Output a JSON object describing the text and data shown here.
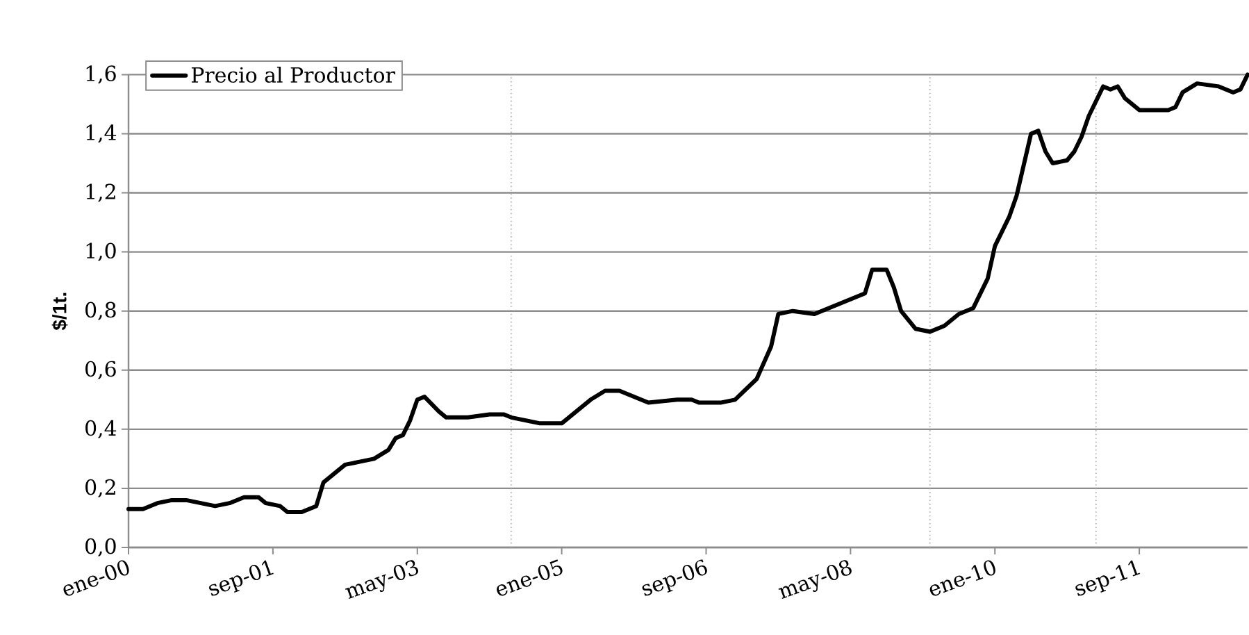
{
  "chart_data": {
    "type": "line",
    "ylabel": "$/1t.",
    "x": [
      "2000-01",
      "2000-03",
      "2000-04",
      "2000-05",
      "2000-07",
      "2000-09",
      "2000-11",
      "2001-01",
      "2001-03",
      "2001-05",
      "2001-07",
      "2001-08",
      "2001-10",
      "2001-11",
      "2002-01",
      "2002-03",
      "2002-04",
      "2002-07",
      "2002-09",
      "2002-11",
      "2003-01",
      "2003-02",
      "2003-03",
      "2003-04",
      "2003-05",
      "2003-06",
      "2003-08",
      "2003-09",
      "2003-11",
      "2003-12",
      "2004-03",
      "2004-04",
      "2004-05",
      "2004-06",
      "2004-08",
      "2004-10",
      "2005-01",
      "2005-02",
      "2005-04",
      "2005-05",
      "2005-07",
      "2005-09",
      "2005-11",
      "2006-01",
      "2006-05",
      "2006-07",
      "2006-08",
      "2006-11",
      "2007-01",
      "2007-04",
      "2007-06",
      "2007-07",
      "2007-09",
      "2007-12",
      "2008-03",
      "2008-05",
      "2008-07",
      "2008-08",
      "2008-10",
      "2008-11",
      "2008-12",
      "2009-02",
      "2009-04",
      "2009-06",
      "2009-08",
      "2009-10",
      "2009-12",
      "2010-01",
      "2010-03",
      "2010-04",
      "2010-06",
      "2010-07",
      "2010-08",
      "2010-09",
      "2010-11",
      "2010-12",
      "2011-01",
      "2011-02",
      "2011-04",
      "2011-05",
      "2011-06",
      "2011-07",
      "2011-09",
      "2011-11",
      "2012-01",
      "2012-02",
      "2012-03",
      "2012-05",
      "2012-08",
      "2012-10",
      "2012-11",
      "2012-12"
    ],
    "series": [
      {
        "name": "Precio al Productor",
        "color": "#000000",
        "values": [
          0.13,
          0.13,
          0.14,
          0.15,
          0.16,
          0.16,
          0.15,
          0.14,
          0.15,
          0.17,
          0.17,
          0.15,
          0.14,
          0.12,
          0.12,
          0.14,
          0.22,
          0.28,
          0.29,
          0.3,
          0.33,
          0.37,
          0.38,
          0.43,
          0.5,
          0.51,
          0.46,
          0.44,
          0.44,
          0.44,
          0.45,
          0.45,
          0.45,
          0.44,
          0.43,
          0.42,
          0.42,
          0.44,
          0.48,
          0.5,
          0.53,
          0.53,
          0.51,
          0.49,
          0.5,
          0.5,
          0.49,
          0.49,
          0.5,
          0.57,
          0.68,
          0.79,
          0.8,
          0.79,
          0.82,
          0.84,
          0.86,
          0.94,
          0.94,
          0.88,
          0.8,
          0.74,
          0.73,
          0.75,
          0.79,
          0.81,
          0.91,
          1.02,
          1.12,
          1.19,
          1.4,
          1.41,
          1.34,
          1.3,
          1.31,
          1.34,
          1.39,
          1.46,
          1.56,
          1.55,
          1.56,
          1.52,
          1.48,
          1.48,
          1.48,
          1.49,
          1.54,
          1.57,
          1.56,
          1.54,
          1.55,
          1.6
        ]
      }
    ],
    "xlim": [
      "2000-01",
      "2012-12"
    ],
    "xticks": [
      {
        "value": "2000-01",
        "label": "ene-00"
      },
      {
        "value": "2001-09",
        "label": "sep-01"
      },
      {
        "value": "2003-05",
        "label": "may-03"
      },
      {
        "value": "2005-01",
        "label": "ene-05"
      },
      {
        "value": "2006-09",
        "label": "sep-06"
      },
      {
        "value": "2008-05",
        "label": "may-08"
      },
      {
        "value": "2010-01",
        "label": "ene-10"
      },
      {
        "value": "2011-09",
        "label": "sep-11"
      }
    ],
    "ylim": [
      0,
      1.6
    ],
    "yticks": [
      {
        "value": 0,
        "label": "0,0"
      },
      {
        "value": 0.2,
        "label": "0,2"
      },
      {
        "value": 0.4,
        "label": "0,4"
      },
      {
        "value": 0.6,
        "label": "0,6"
      },
      {
        "value": 0.8,
        "label": "0,8"
      },
      {
        "value": 1.0,
        "label": "1,0"
      },
      {
        "value": 1.2,
        "label": "1,2"
      },
      {
        "value": 1.4,
        "label": "1,4"
      },
      {
        "value": 1.6,
        "label": "1,6"
      }
    ],
    "ref_lines": [
      {
        "axis": "x",
        "value": "2004-06",
        "color": "#a6a6a6",
        "line_style": "dotted"
      },
      {
        "axis": "x",
        "value": "2009-04",
        "color": "#a6a6a6",
        "line_style": "dotted"
      },
      {
        "axis": "x",
        "value": "2011-03",
        "color": "#a6a6a6",
        "line_style": "dotted"
      }
    ],
    "grid": "y",
    "legend": "top left",
    "line_style": "solid",
    "marker": "none"
  }
}
